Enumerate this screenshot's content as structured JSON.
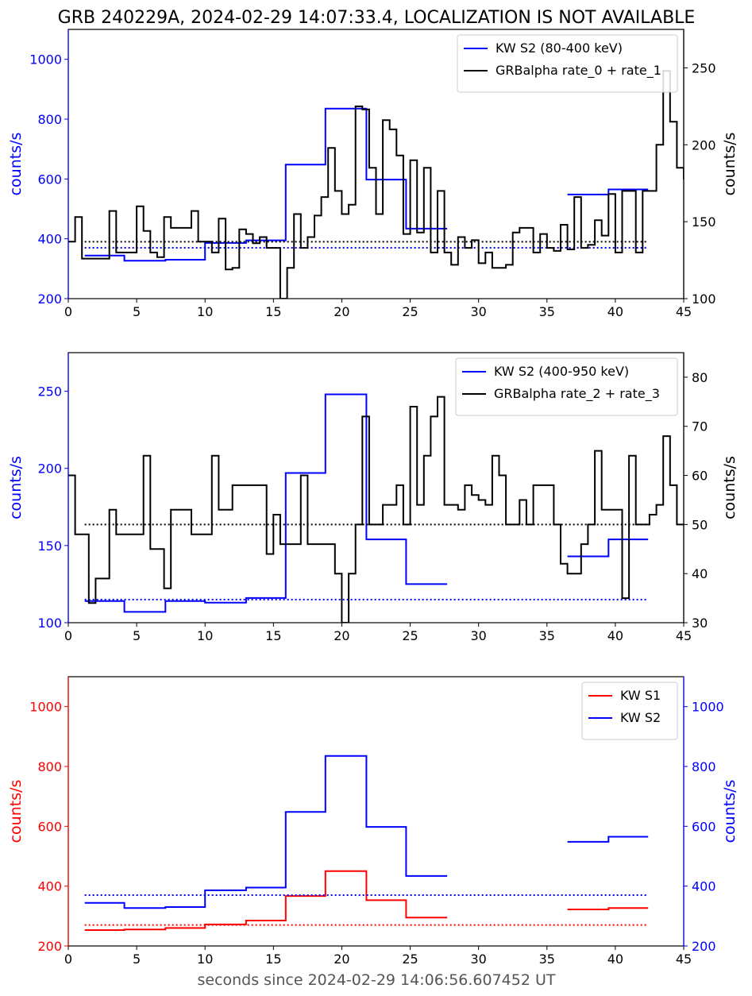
{
  "figure": {
    "title": "GRB 240229A, 2024-02-29 14:07:33.4, LOCALIZATION IS NOT AVAILABLE",
    "xlabel": "seconds since 2024-02-29 14:06:56.607452 UT"
  },
  "chart_data": [
    {
      "type": "line",
      "step": true,
      "xlim": [
        0,
        45
      ],
      "xticks": [
        0,
        5,
        10,
        15,
        20,
        25,
        30,
        35,
        40,
        45
      ],
      "left_axis": {
        "label": "counts/s",
        "color": "#0000ff",
        "ylim": [
          200,
          1100
        ],
        "ticks": [
          200,
          400,
          600,
          800,
          1000
        ]
      },
      "right_axis": {
        "label": "counts/s",
        "color": "#000000",
        "ylim": [
          100,
          275
        ],
        "ticks": [
          100,
          150,
          200,
          250
        ]
      },
      "legend": "top-right",
      "series": [
        {
          "name": "KW S2 (80-400 keV)",
          "axis": "left",
          "color": "#0000ff",
          "edges": [
            1.2,
            4.1,
            7.1,
            10.0,
            13.0,
            15.9,
            18.8,
            21.8,
            24.7,
            27.7
          ],
          "values": [
            344,
            327,
            330,
            386,
            395,
            648,
            835,
            598,
            434
          ],
          "background": 370,
          "segment2": {
            "edges": [
              36.5,
              39.5,
              42.4
            ],
            "values": [
              548,
              565
            ]
          }
        },
        {
          "name": "GRBalpha rate_0 + rate_1",
          "axis": "right",
          "color": "#000000",
          "x0": 0,
          "dx": 0.5,
          "values": [
            137,
            153,
            126,
            126,
            126,
            126,
            157,
            130,
            130,
            130,
            160,
            144,
            130,
            127,
            153,
            146,
            146,
            146,
            157,
            137,
            137,
            130,
            152,
            119,
            120,
            145,
            142,
            136,
            140,
            133,
            133,
            100,
            120,
            155,
            133,
            140,
            154,
            166,
            198,
            170,
            155,
            161,
            225,
            223,
            185,
            155,
            216,
            210,
            193,
            142,
            190,
            143,
            185,
            130,
            170,
            130,
            122,
            140,
            133,
            138,
            123,
            130,
            120,
            120,
            122,
            143,
            146,
            146,
            130,
            142,
            133,
            131,
            148,
            132,
            166,
            133,
            135,
            151,
            141,
            168,
            130,
            170,
            170,
            130,
            170,
            170,
            200,
            248,
            215,
            185,
            178,
            163,
            184,
            178,
            154,
            156,
            158,
            152,
            141,
            140,
            150,
            136,
            141,
            156,
            156,
            130
          ],
          "background": 137
        }
      ]
    },
    {
      "type": "line",
      "step": true,
      "xlim": [
        0,
        45
      ],
      "xticks": [
        0,
        5,
        10,
        15,
        20,
        25,
        30,
        35,
        40,
        45
      ],
      "left_axis": {
        "label": "counts/s",
        "color": "#0000ff",
        "ylim": [
          100,
          275
        ],
        "ticks": [
          100,
          150,
          200,
          250
        ]
      },
      "right_axis": {
        "label": "counts/s",
        "color": "#000000",
        "ylim": [
          30,
          85
        ],
        "ticks": [
          30,
          40,
          50,
          60,
          70,
          80
        ]
      },
      "legend": "top-right",
      "series": [
        {
          "name": "KW S2 (400-950 keV)",
          "axis": "left",
          "color": "#0000ff",
          "edges": [
            1.2,
            4.1,
            7.1,
            10.0,
            13.0,
            15.9,
            18.8,
            21.8,
            24.7,
            27.7
          ],
          "values": [
            114,
            107,
            114,
            113,
            116,
            197,
            248,
            154,
            125
          ],
          "background": 115,
          "segment2": {
            "edges": [
              36.5,
              39.5,
              42.4
            ],
            "values": [
              143,
              154
            ]
          }
        },
        {
          "name": "GRBalpha rate_2 + rate_3",
          "axis": "right",
          "color": "#000000",
          "x0": 0,
          "dx": 0.5,
          "values": [
            60,
            48,
            48,
            34,
            39,
            39,
            53,
            48,
            48,
            48,
            48,
            64,
            45,
            45,
            37,
            53,
            53,
            53,
            48,
            48,
            48,
            64,
            53,
            53,
            58,
            58,
            58,
            58,
            58,
            44,
            52,
            46,
            46,
            46,
            60,
            46,
            46,
            46,
            46,
            40,
            30,
            40,
            50,
            72,
            50,
            50,
            54,
            54,
            58,
            50,
            74,
            54,
            64,
            72,
            76,
            54,
            54,
            53,
            58,
            56,
            55,
            54,
            64,
            60,
            50,
            50,
            55,
            50,
            58,
            58,
            58,
            50,
            42,
            40,
            40,
            46,
            50,
            65,
            53,
            53,
            53,
            35,
            64,
            50,
            50,
            52,
            54,
            68,
            58,
            50,
            50,
            52,
            50,
            50,
            36,
            36,
            39,
            38,
            52,
            53,
            56,
            60,
            50,
            50,
            50,
            50
          ],
          "background": 50
        }
      ]
    },
    {
      "type": "line",
      "step": true,
      "xlim": [
        0,
        45
      ],
      "xticks": [
        0,
        5,
        10,
        15,
        20,
        25,
        30,
        35,
        40,
        45
      ],
      "left_axis": {
        "label": "counts/s",
        "color": "#ff0000",
        "ylim": [
          200,
          1100
        ],
        "ticks": [
          200,
          400,
          600,
          800,
          1000
        ]
      },
      "right_axis": {
        "label": "counts/s",
        "color": "#0000ff",
        "ylim": [
          200,
          1100
        ],
        "ticks": [
          200,
          400,
          600,
          800,
          1000
        ]
      },
      "legend": "top-right",
      "series": [
        {
          "name": "KW S1",
          "axis": "left",
          "color": "#ff0000",
          "edges": [
            1.2,
            4.1,
            7.1,
            10.0,
            13.0,
            15.9,
            18.8,
            21.8,
            24.7,
            27.7
          ],
          "values": [
            253,
            255,
            260,
            272,
            285,
            367,
            450,
            353,
            295
          ],
          "background": 270,
          "segment2": {
            "edges": [
              36.5,
              39.5,
              42.4
            ],
            "values": [
              322,
              327
            ]
          }
        },
        {
          "name": "KW S2",
          "axis": "right",
          "color": "#0000ff",
          "edges": [
            1.2,
            4.1,
            7.1,
            10.0,
            13.0,
            15.9,
            18.8,
            21.8,
            24.7,
            27.7
          ],
          "values": [
            344,
            327,
            330,
            386,
            395,
            648,
            835,
            598,
            434
          ],
          "background": 370,
          "segment2": {
            "edges": [
              36.5,
              39.5,
              42.4
            ],
            "values": [
              548,
              565
            ]
          }
        }
      ]
    }
  ]
}
